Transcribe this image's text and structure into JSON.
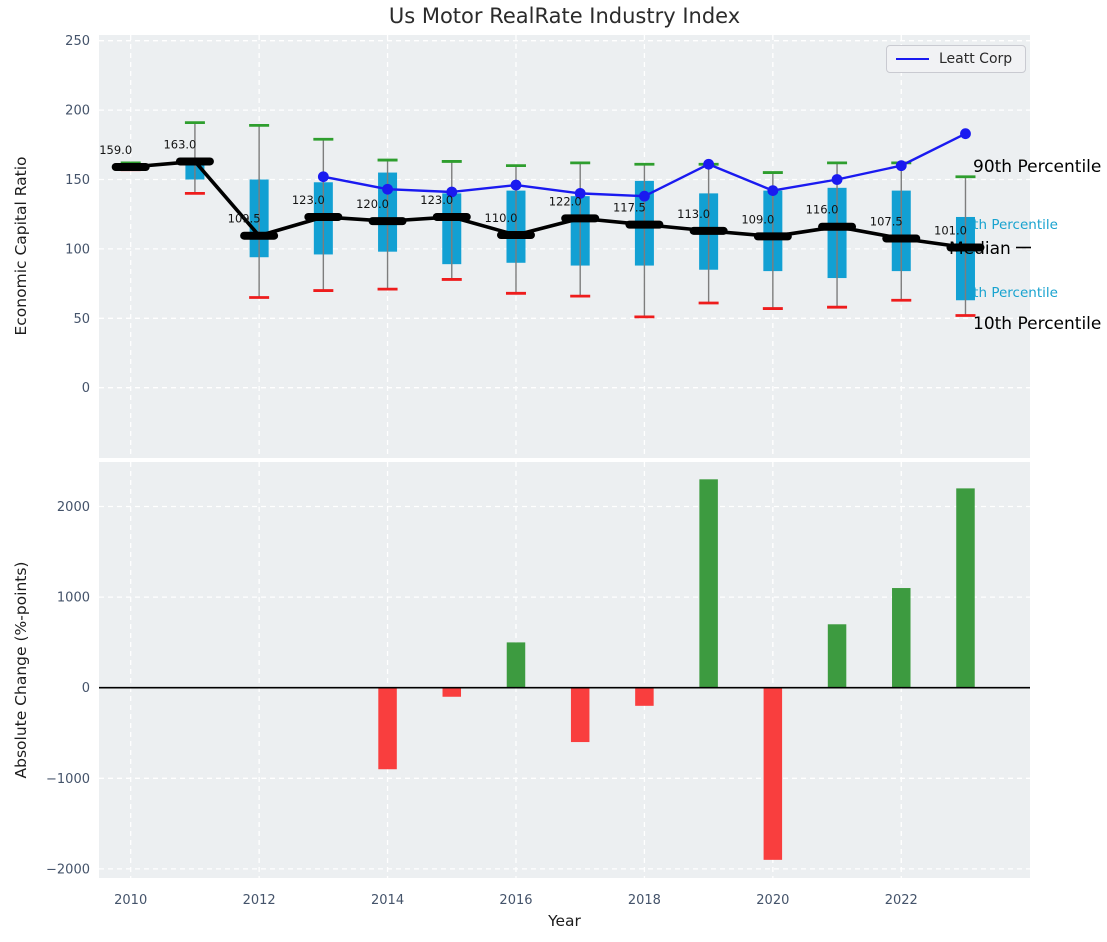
{
  "title": "Us Motor RealRate Industry Index",
  "legend": {
    "label": "Leatt Corp"
  },
  "colors": {
    "plot_bg": "#eceff1",
    "grid": "#ffffff",
    "box_fill": "#12a0d3",
    "whisker_line": "#7d7d7d",
    "p90_cap": "#2e9e2e",
    "p10_cap": "#ee1c1c",
    "median_line": "#000000",
    "company_line": "#1a1af0",
    "bar_positive": "#3d9b40",
    "bar_negative": "#f93e3e",
    "tick_label": "#44536a",
    "annotation_black": "#000000",
    "annotation_cyan": "#19a3cf",
    "zero_line": "#000000"
  },
  "chart_data": [
    {
      "type": "boxplot+line",
      "title": "Us Motor RealRate Industry Index",
      "ylabel": "Economic Capital Ratio",
      "ylim": [
        -49,
        255
      ],
      "yticks": [
        0,
        50,
        100,
        150,
        200,
        250
      ],
      "xticks": [
        2010,
        2012,
        2014,
        2016,
        2018,
        2020,
        2022
      ],
      "grid": true,
      "legend_position": "upper right",
      "years": [
        2010,
        2011,
        2012,
        2013,
        2014,
        2015,
        2016,
        2017,
        2018,
        2019,
        2020,
        2021,
        2022,
        2023
      ],
      "percentiles": {
        "p90": [
          162,
          191,
          189,
          179,
          164,
          163,
          160,
          162,
          161,
          161,
          155,
          162,
          162,
          152
        ],
        "p75": [
          160.5,
          164,
          150,
          148,
          155,
          140,
          142,
          138,
          149,
          140,
          142,
          144,
          142,
          123
        ],
        "median": [
          159,
          163,
          109.5,
          123,
          120,
          123,
          110,
          122,
          117.5,
          113,
          109,
          116,
          107.5,
          101
        ],
        "p25": [
          158,
          150,
          94,
          96,
          98,
          89,
          90,
          88,
          88,
          85,
          84,
          79,
          84,
          63
        ],
        "p10": [
          157,
          140,
          65,
          70,
          71,
          78,
          68,
          66,
          51,
          61,
          57,
          58,
          63,
          52
        ]
      },
      "median_labels": [
        "159.0",
        "163.0",
        "109.5",
        "123.0",
        "120.0",
        "123.0",
        "110.0",
        "122.0",
        "117.5",
        "113.0",
        "109.0",
        "116.0",
        "107.5",
        "101.0"
      ],
      "series": [
        {
          "name": "Leatt Corp",
          "x": [
            2013,
            2014,
            2015,
            2016,
            2017,
            2018,
            2019,
            2020,
            2021,
            2022,
            2023
          ],
          "values": [
            152,
            143,
            141,
            146,
            140,
            138,
            161,
            142,
            150,
            160,
            183
          ]
        }
      ],
      "annotations": [
        {
          "id": "p90",
          "text": "90th Percentile",
          "style": "black"
        },
        {
          "id": "p75",
          "text": "75th Percentile",
          "style": "cyan"
        },
        {
          "id": "median",
          "text": "Median",
          "style": "black"
        },
        {
          "id": "p25",
          "text": "25th Percentile",
          "style": "cyan"
        },
        {
          "id": "p10",
          "text": "10th Percentile",
          "style": "black"
        }
      ]
    },
    {
      "type": "bar",
      "ylabel": "Absolute Change (%-points)",
      "xlabel": "Year",
      "ylim": [
        -2100,
        2490
      ],
      "yticks": [
        -2000,
        -1000,
        0,
        1000,
        2000
      ],
      "xticks": [
        2010,
        2012,
        2014,
        2016,
        2018,
        2020,
        2022
      ],
      "grid": true,
      "x": [
        2014,
        2015,
        2016,
        2017,
        2018,
        2019,
        2020,
        2021,
        2022,
        2023
      ],
      "values": [
        -900,
        -100,
        500,
        -600,
        -200,
        2300,
        -1900,
        700,
        1100,
        2200
      ]
    }
  ]
}
